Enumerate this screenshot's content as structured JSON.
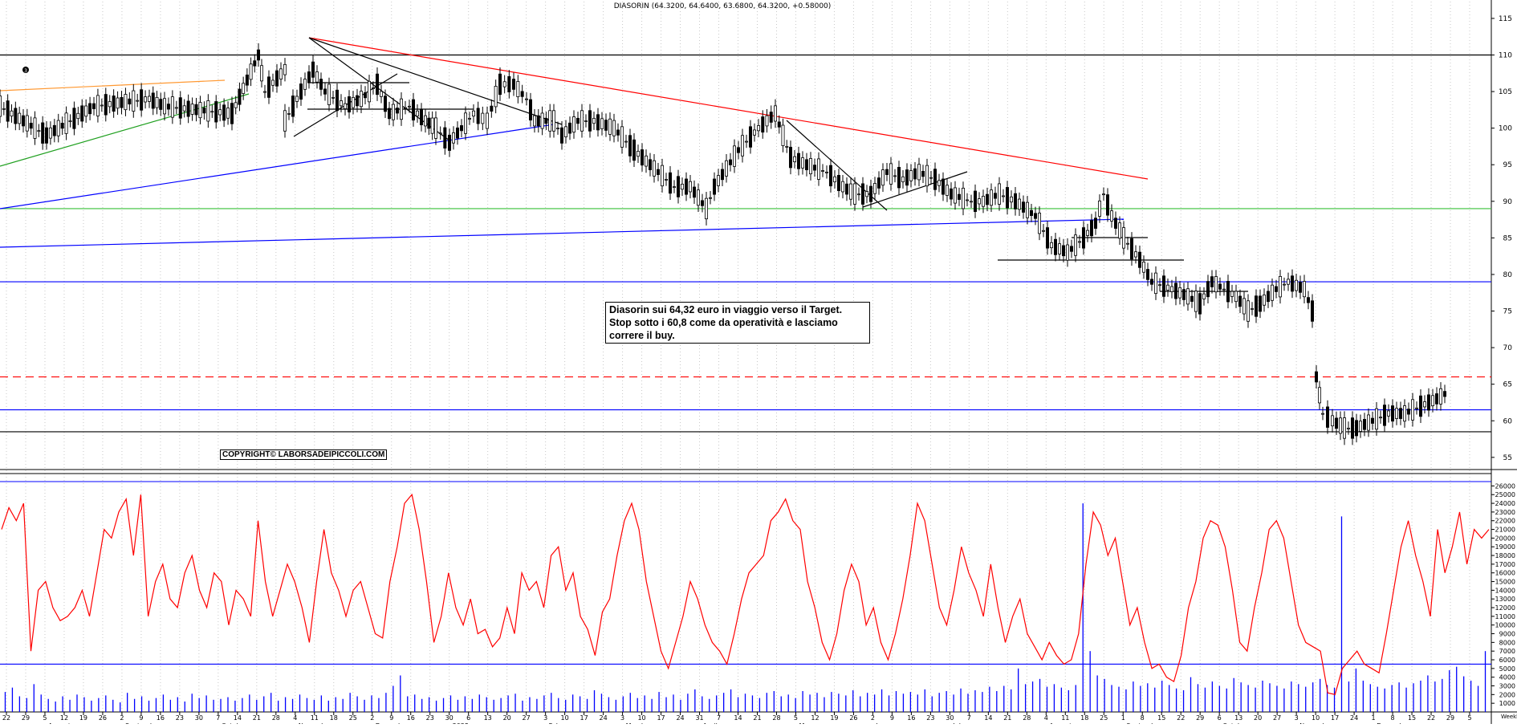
{
  "chart_data": [
    {
      "type": "candlestick",
      "title": "DIASORIN (64.3200, 64.6400, 63.6800, 64.3200, +0.58000)",
      "ylim": [
        50,
        120
      ],
      "yticks": [
        55,
        60,
        65,
        70,
        75,
        80,
        85,
        90,
        95,
        100,
        105,
        110,
        115
      ],
      "date_ticks": [
        "22",
        "29",
        "5",
        "12",
        "19",
        "26",
        "2",
        "9",
        "16",
        "23",
        "30",
        "7",
        "14",
        "21",
        "28",
        "4",
        "11",
        "18",
        "25",
        "2",
        "9",
        "16",
        "23",
        "30",
        "6",
        "13",
        "20",
        "27",
        "3",
        "10",
        "17",
        "24",
        "3",
        "10",
        "17",
        "24",
        "31",
        "7",
        "14",
        "21",
        "28",
        "5",
        "12",
        "19",
        "26",
        "2",
        "9",
        "16",
        "23",
        "30",
        "7",
        "14",
        "21",
        "28",
        "4",
        "11",
        "18",
        "25",
        "1",
        "8",
        "15",
        "22",
        "29",
        "6",
        "13",
        "20",
        "27",
        "3",
        "10",
        "17",
        "24",
        "1",
        "8",
        "15",
        "22",
        "29",
        "5"
      ],
      "months": [
        "August",
        "September",
        "October",
        "November",
        "December",
        "2025",
        "February",
        "March",
        "April",
        "May",
        "June",
        "July",
        "August",
        "September",
        "October",
        "November",
        "December"
      ],
      "horizontal_levels": [
        {
          "value": 110,
          "color": "#000000",
          "style": "solid"
        },
        {
          "value": 89,
          "color": "#38c038",
          "style": "solid"
        },
        {
          "value": 79,
          "color": "#0000ff",
          "style": "solid"
        },
        {
          "value": 66,
          "color": "#ff0000",
          "style": "dashed"
        },
        {
          "value": 61.5,
          "color": "#0000ff",
          "style": "solid"
        },
        {
          "value": 58.5,
          "color": "#000000",
          "style": "solid"
        }
      ],
      "series": [
        {
          "name": "",
          "segments": [
            [
              0,
              103
            ],
            [
              58,
              99
            ],
            [
              117,
              103
            ],
            [
              186,
              104
            ],
            [
              205,
              103
            ],
            [
              289,
              102
            ],
            [
              322,
              110
            ],
            [
              330,
              105
            ],
            [
              355,
              108
            ],
            [
              355,
              101
            ],
            [
              390,
              108
            ],
            [
              405,
              105
            ],
            [
              430,
              103
            ],
            [
              450,
              104
            ],
            [
              470,
              106
            ],
            [
              485,
              102
            ],
            [
              510,
              103
            ],
            [
              530,
              101
            ],
            [
              543,
              100
            ],
            [
              560,
              98
            ],
            [
              575,
              100
            ],
            [
              590,
              102
            ],
            [
              607,
              101
            ],
            [
              623,
              106
            ],
            [
              640,
              106
            ],
            [
              656,
              104
            ],
            [
              666,
              101
            ],
            [
              690,
              101
            ],
            [
              700,
              99
            ],
            [
              720,
              101
            ],
            [
              740,
              101
            ],
            [
              765,
              100
            ],
            [
              790,
              97
            ],
            [
              810,
              95
            ],
            [
              840,
              92
            ],
            [
              860,
              92
            ],
            [
              880,
              89
            ],
            [
              890,
              92
            ],
            [
              920,
              97
            ],
            [
              945,
              100
            ],
            [
              966,
              102
            ],
            [
              985,
              96
            ],
            [
              1005,
              95
            ],
            [
              1030,
              94
            ],
            [
              1050,
              92
            ],
            [
              1065,
              91
            ],
            [
              1085,
              91
            ],
            [
              1105,
              94
            ],
            [
              1125,
              93
            ],
            [
              1145,
              94
            ],
            [
              1165,
              93
            ],
            [
              1185,
              91
            ],
            [
              1210,
              90
            ],
            [
              1225,
              90
            ],
            [
              1245,
              91
            ],
            [
              1265,
              90
            ],
            [
              1290,
              88
            ],
            [
              1310,
              84
            ],
            [
              1330,
              83
            ],
            [
              1350,
              85
            ],
            [
              1365,
              87
            ],
            [
              1375,
              91
            ],
            [
              1385,
              88
            ],
            [
              1400,
              85
            ],
            [
              1420,
              82
            ],
            [
              1435,
              79
            ],
            [
              1460,
              78
            ],
            [
              1480,
              77
            ],
            [
              1495,
              76
            ],
            [
              1510,
              79
            ],
            [
              1525,
              78
            ],
            [
              1540,
              77
            ],
            [
              1555,
              75
            ],
            [
              1570,
              76
            ],
            [
              1590,
              78
            ],
            [
              1605,
              79
            ],
            [
              1625,
              78
            ],
            [
              1635,
              75
            ],
            [
              1640,
              66
            ],
            [
              1648,
              61
            ],
            [
              1660,
              60
            ],
            [
              1675,
              59
            ],
            [
              1690,
              59
            ],
            [
              1710,
              60
            ],
            [
              1730,
              61
            ],
            [
              1750,
              61
            ],
            [
              1770,
              62
            ],
            [
              1790,
              63
            ],
            [
              1805,
              64
            ]
          ]
        }
      ]
    },
    {
      "type": "line",
      "ylim": [
        0,
        26500
      ],
      "yticks": [
        "1000",
        "2000",
        "3000",
        "4000",
        "5000",
        "6000",
        "7000",
        "8000",
        "9000",
        "10000",
        "11000",
        "12000",
        "13000",
        "14000",
        "15000",
        "16000",
        "17000",
        "18000",
        "19000",
        "20000",
        "21000",
        "22000",
        "23000",
        "24000",
        "25000",
        "26000"
      ],
      "horizontal_levels": [
        {
          "value": 5500,
          "color": "#0000ff"
        }
      ],
      "series": [
        {
          "name": "",
          "color": "#ff0000",
          "values": [
            21000,
            23500,
            22000,
            24000,
            7000,
            14000,
            15000,
            12000,
            10500,
            11000,
            12000,
            14000,
            11000,
            16000,
            21000,
            20000,
            23000,
            24500,
            18000,
            25000,
            11000,
            15000,
            17000,
            13000,
            12000,
            16000,
            18000,
            14000,
            12000,
            16000,
            15000,
            10000,
            14000,
            13000,
            11000,
            22000,
            15000,
            11000,
            14000,
            17000,
            15000,
            12000,
            8000,
            15000,
            21000,
            16000,
            14000,
            11000,
            14000,
            15000,
            12000,
            9000,
            8500,
            15000,
            19000,
            24000,
            25000,
            21000,
            15000,
            8000,
            11000,
            16000,
            12000,
            10000,
            13000,
            9000,
            9500,
            7500,
            8500,
            12000,
            9000,
            16000,
            14000,
            15000,
            12000,
            18000,
            19000,
            14000,
            16000,
            11000,
            9500,
            6500,
            11500,
            13000,
            18000,
            22000,
            24000,
            21000,
            15000,
            11000,
            7000,
            5000,
            8000,
            11000,
            15000,
            13000,
            10000,
            8000,
            7000,
            5500,
            9000,
            13000,
            16000,
            17000,
            18000,
            22000,
            23000,
            24500,
            22000,
            21000,
            15000,
            12000,
            8000,
            6000,
            9000,
            14000,
            17000,
            15000,
            10000,
            12000,
            8000,
            6000,
            9000,
            13000,
            18000,
            24000,
            22000,
            17000,
            12000,
            10000,
            14000,
            19000,
            16000,
            14000,
            11000,
            17000,
            12000,
            8000,
            11000,
            13000,
            9000,
            7500,
            6000,
            8000,
            6500,
            5500,
            6000,
            9000,
            17000,
            23000,
            21500,
            18000,
            20000,
            15000,
            10000,
            12000,
            8000,
            5000,
            5500,
            4000,
            3500,
            6500,
            12000,
            15000,
            20000,
            22000,
            21500,
            19000,
            14000,
            8000,
            7000,
            12000,
            16000,
            21000,
            22000,
            20000,
            15000,
            10000,
            8000,
            7500,
            7000,
            2200,
            2000,
            5000,
            6000,
            7000,
            5500,
            5000,
            4500,
            9000,
            14000,
            19000,
            22000,
            18000,
            15000,
            11000,
            21000,
            16000,
            19000,
            23000,
            17000,
            21000,
            20000,
            21000
          ]
        },
        {
          "name": "",
          "color": "#0000ff",
          "type": "bar",
          "values": [
            2300,
            2800,
            1800,
            1600,
            3200,
            2000,
            1500,
            1200,
            1800,
            1400,
            2000,
            1700,
            1300,
            1600,
            1900,
            1400,
            1100,
            2200,
            1500,
            1800,
            1300,
            1600,
            2000,
            1400,
            1700,
            1200,
            2100,
            1600,
            1900,
            1400,
            1500,
            1700,
            1300,
            1600,
            2000,
            1400,
            1800,
            2200,
            1300,
            1700,
            1500,
            2000,
            1600,
            1400,
            1900,
            1300,
            1700,
            1500,
            2200,
            1800,
            1400,
            1900,
            1600,
            2200,
            3000,
            4200,
            1800,
            2000,
            1500,
            1700,
            1300,
            1600,
            1900,
            1400,
            1800,
            1500,
            2000,
            1700,
            1400,
            1600,
            1900,
            2100,
            1300,
            1700,
            1500,
            1900,
            2200,
            1600,
            1400,
            2000,
            1800,
            1500,
            2500,
            2100,
            1700,
            1400,
            1800,
            2200,
            1600,
            1900,
            1500,
            2300,
            1700,
            2000,
            1400,
            2100,
            2600,
            1800,
            1500,
            1900,
            2200,
            2600,
            1700,
            2100,
            1900,
            1600,
            2200,
            2400,
            1800,
            2000,
            1600,
            2400,
            2000,
            2200,
            1700,
            2300,
            2100,
            1900,
            2500,
            1800,
            2200,
            2000,
            2600,
            1900,
            2400,
            2100,
            2300,
            2000,
            2600,
            1800,
            2200,
            2400,
            2000,
            2700,
            2100,
            2500,
            2300,
            2900,
            2400,
            3000,
            2600,
            5000,
            3200,
            3500,
            3800,
            2900,
            3200,
            2800,
            2500,
            3100,
            24000,
            7000,
            4200,
            3800,
            3100,
            2900,
            2600,
            3500,
            3000,
            3300,
            2800,
            3600,
            3100,
            2700,
            2500,
            4000,
            3200,
            2800,
            3500,
            3000,
            2700,
            3900,
            3400,
            3100,
            2800,
            3600,
            3300,
            3000,
            2700,
            3500,
            3200,
            2900,
            3400,
            3800,
            3100,
            2800,
            22500,
            3500,
            5000,
            3600,
            3200,
            2900,
            2700,
            3100,
            3400,
            2800,
            3300,
            3600,
            4200,
            3500,
            3800,
            4800,
            5200,
            4100,
            3600,
            3000,
            7000
          ]
        }
      ]
    }
  ],
  "annotation": {
    "line1": "Diasorin sui 64,32 euro in viaggio verso il Target.",
    "line2": "Stop sotto i 60,8 come da operatività e lasciamo",
    "line3": "correre il buy."
  },
  "copyright": "COPYRIGHT© LABORSADEIPICCOLI.COM",
  "marker_label": "3",
  "axis_side_label": "Weekly"
}
